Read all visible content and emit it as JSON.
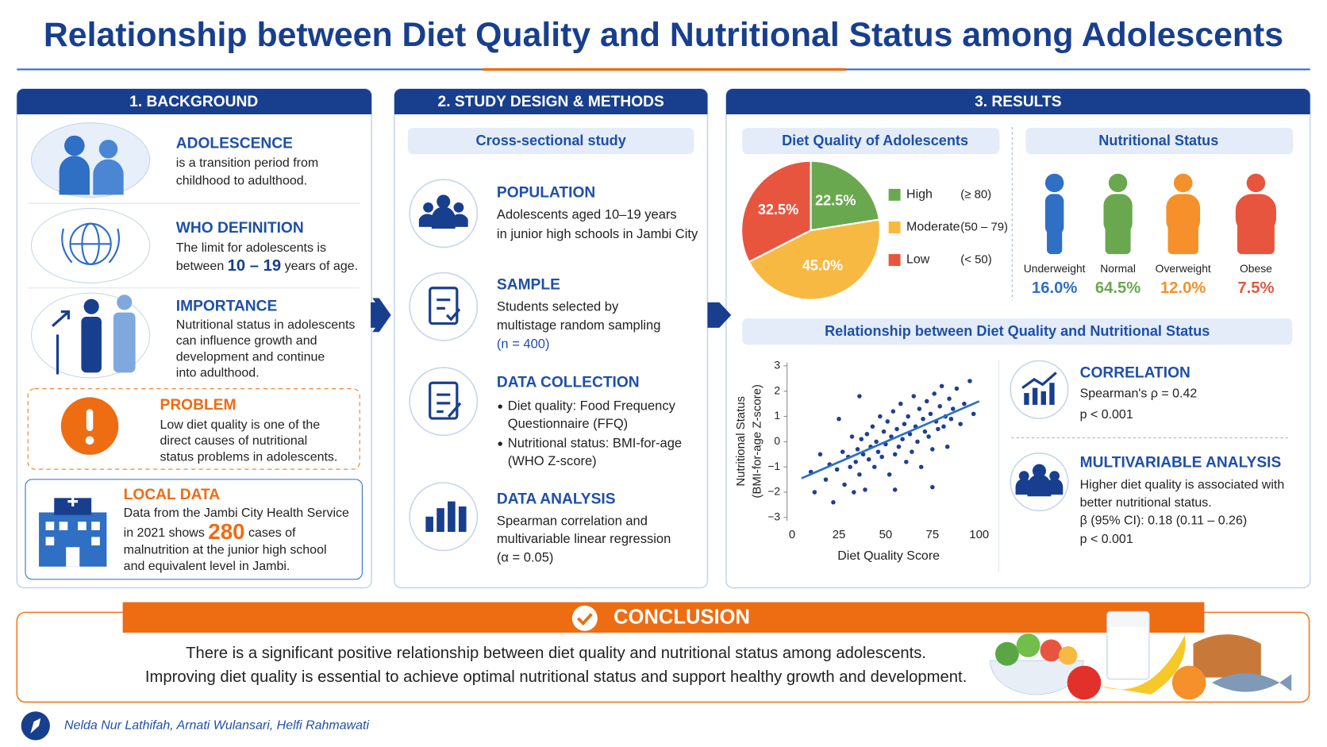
{
  "title": "Relationship between Diet Quality and Nutritional Status among Adolescents",
  "background": {
    "heading": "1. BACKGROUND",
    "adolescence": {
      "title": "ADOLESCENCE",
      "lines": [
        "is a transition period from",
        "childhood to adulthood."
      ]
    },
    "who": {
      "title": "WHO DEFINITION",
      "lines": [
        "The limit for adolescents is",
        [
          "between ",
          "10 – 19",
          " years of age."
        ]
      ]
    },
    "importance": {
      "title": "IMPORTANCE",
      "lines": [
        "Nutritional status in adolescents",
        "can influence growth and",
        "development and continue",
        "into adulthood."
      ]
    },
    "problem": {
      "title": "PROBLEM",
      "lines": [
        "Low diet quality is one of the",
        "direct causes of nutritional",
        "status problems in adolescents."
      ]
    },
    "local_data": {
      "title": "LOCAL DATA",
      "lines": [
        "Data from the Jambi City Health Service",
        [
          "in 2021 shows ",
          "280",
          " cases of"
        ],
        "malnutrition at the junior high school",
        "and equivalent level in Jambi."
      ]
    }
  },
  "methods": {
    "heading": "2. STUDY DESIGN & METHODS",
    "design": "Cross-sectional study",
    "population": {
      "title": "POPULATION",
      "lines": [
        "Adolescents aged 10–19 years",
        "in junior high schools in Jambi City"
      ]
    },
    "sample": {
      "title": "SAMPLE",
      "lines": [
        "Students selected by",
        "multistage random sampling",
        "(n = 400)"
      ]
    },
    "data_collection": {
      "title": "DATA COLLECTION",
      "lines": [
        "Diet quality: Food Frequency",
        "Questionnaire (FFQ)",
        "Nutritional status: BMI-for-age",
        "(WHO Z-score)"
      ]
    },
    "data_analysis": {
      "title": "DATA ANALYSIS",
      "lines": [
        "Spearman correlation and",
        "multivariable linear regression",
        "(α = 0.05)"
      ]
    }
  },
  "results": {
    "heading": "3. RESULTS",
    "diet_quality": {
      "type": "pie",
      "title": "Diet Quality of Adolescents",
      "categories": [
        "High",
        "Moderate",
        "Low"
      ],
      "ranges": [
        "(≥ 80)",
        "(50 – 79)",
        "(< 50)"
      ],
      "values": [
        22.5,
        45.0,
        32.5
      ],
      "value_labels": [
        "22.5%",
        "45.0%",
        "32.5%"
      ],
      "colors": [
        "#6aa84f",
        "#f7b942",
        "#e8553e"
      ]
    },
    "nutritional_status": {
      "type": "figures",
      "title": "Nutritional Status",
      "categories": [
        "Underweight",
        "Normal",
        "Overweight",
        "Obese"
      ],
      "values": [
        16.0,
        64.5,
        12.0,
        7.5
      ],
      "value_labels": [
        "16.0%",
        "64.5%",
        "12.0%",
        "7.5%"
      ],
      "colors": [
        "#2f6fc4",
        "#6aa84f",
        "#f5902a",
        "#e8553e"
      ]
    },
    "relationship": {
      "type": "scatter",
      "title": "Relationship between Diet Quality and Nutritional Status",
      "x_label": "Diet Quality Score",
      "y_label": [
        "Nutritional Status",
        "(BMI-for-age Z-score)"
      ],
      "xlim": [
        0,
        100
      ],
      "xticks": [
        0,
        25,
        50,
        75,
        100
      ],
      "ylim": [
        -3,
        3
      ],
      "yticks": [
        {
          "value": -3,
          "label": "−3"
        },
        {
          "value": -2,
          "label": "−2"
        },
        {
          "value": -1,
          "label": "−1"
        },
        0,
        1,
        2,
        3
      ],
      "color": "#1f3f8f",
      "x": [
        10,
        12,
        15,
        18,
        20,
        22,
        24,
        25,
        27,
        28,
        30,
        31,
        32,
        33,
        34,
        35,
        36,
        37,
        38,
        39,
        40,
        41,
        42,
        43,
        44,
        45,
        46,
        47,
        48,
        49,
        50,
        51,
        52,
        53,
        54,
        55,
        56,
        57,
        58,
        59,
        60,
        61,
        62,
        63,
        64,
        65,
        66,
        67,
        68,
        69,
        70,
        71,
        72,
        73,
        74,
        75,
        76,
        77,
        78,
        79,
        80,
        81,
        82,
        83,
        84,
        85,
        86,
        88,
        90,
        92,
        95,
        97,
        75,
        55,
        36
      ],
      "y": [
        -1.2,
        -2.0,
        -0.5,
        -1.5,
        -0.9,
        -2.4,
        -1.1,
        0.9,
        -0.4,
        -1.7,
        -0.6,
        -1.0,
        0.2,
        -2.0,
        -0.8,
        -0.3,
        -1.3,
        0.1,
        -0.5,
        -1.9,
        0.3,
        -0.7,
        -0.2,
        0.6,
        -1.0,
        0.0,
        -0.4,
        1.0,
        -0.6,
        0.4,
        -0.1,
        0.8,
        -1.3,
        0.2,
        1.2,
        -0.5,
        0.5,
        -0.2,
        1.5,
        0.1,
        0.7,
        -0.8,
        1.0,
        0.3,
        -0.4,
        1.8,
        0.6,
        0.0,
        1.3,
        -1.0,
        0.9,
        0.4,
        1.6,
        0.2,
        1.1,
        -0.3,
        1.9,
        0.8,
        0.5,
        1.4,
        2.2,
        0.6,
        1.0,
        -0.2,
        1.7,
        0.9,
        1.3,
        2.1,
        0.7,
        1.5,
        2.4,
        1.1,
        -1.8,
        -1.9,
        1.8
      ],
      "trend": {
        "x": [
          5,
          100
        ],
        "y": [
          -1.45,
          1.6
        ]
      }
    },
    "correlation": {
      "title": "CORRELATION",
      "lines": [
        "Spearman's ρ = 0.42",
        "p < 0.001"
      ]
    },
    "multivariable": {
      "title": "MULTIVARIABLE ANALYSIS",
      "lines": [
        "Higher diet quality is associated with",
        "better nutritional status.",
        "β (95% CI): 0.18 (0.11 – 0.26)",
        "p < 0.001"
      ]
    }
  },
  "conclusion": {
    "title": "CONCLUSION",
    "lines": [
      "There is a significant positive relationship between diet quality and nutritional status among adolescents.",
      "Improving diet quality is essential to achieve optimal nutritional status and support healthy growth and development."
    ]
  },
  "authors": "Nelda Nur Lathifah, Arnati Wulansari, Helfi Rahmawati"
}
